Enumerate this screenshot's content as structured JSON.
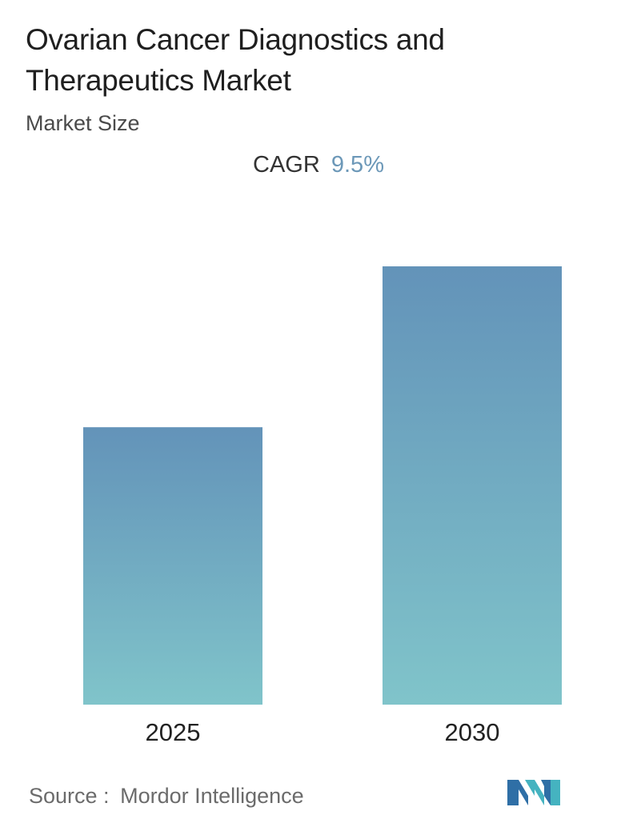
{
  "title": "Ovarian Cancer Diagnostics and Therapeutics Market",
  "subtitle": "Market Size",
  "cagr": {
    "label": "CAGR",
    "value": "9.5%"
  },
  "chart_data": {
    "type": "bar",
    "categories": [
      "2025",
      "2030"
    ],
    "values": [
      1.0,
      1.58
    ],
    "value_note": "",
    "grid": false,
    "colors": {
      "bar_top": "#6393b9",
      "bar_bottom": "#80c4ca"
    }
  },
  "source": {
    "label": "Source :",
    "name": "Mordor Intelligence"
  },
  "logo": {
    "icon": "mordor-intelligence-logo",
    "colors": [
      "#2f6fa6",
      "#45b3c0"
    ]
  }
}
